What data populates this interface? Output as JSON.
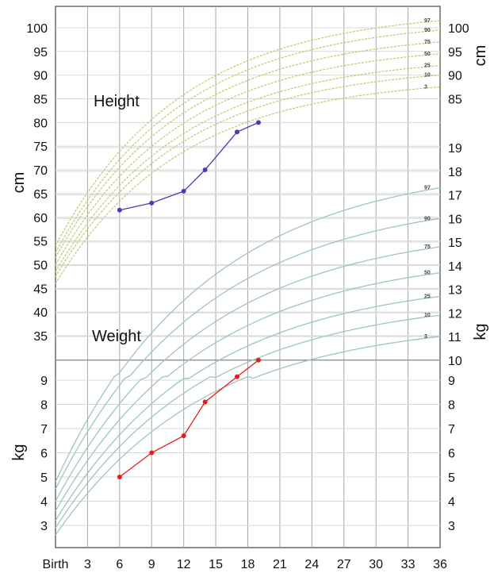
{
  "chart_data": {
    "type": "line",
    "x_axis": {
      "min": 0,
      "max": 36,
      "ticks": [
        0,
        3,
        6,
        9,
        12,
        15,
        18,
        21,
        24,
        27,
        30,
        33,
        36
      ],
      "tick_labels": [
        "Birth",
        "3",
        "6",
        "9",
        "12",
        "15",
        "18",
        "21",
        "24",
        "27",
        "30",
        "33",
        "36"
      ]
    },
    "height_axis_left": {
      "label": "cm",
      "ticks": [
        35,
        40,
        45,
        50,
        55,
        60,
        65,
        70,
        75,
        80,
        85,
        90,
        95,
        100
      ]
    },
    "height_axis_right": {
      "label": "cm",
      "ticks": [
        85,
        90,
        95,
        100
      ]
    },
    "weight_axis_left": {
      "label": "kg",
      "ticks": [
        3,
        4,
        5,
        6,
        7,
        8,
        9
      ]
    },
    "weight_axis_right": {
      "label": "kg",
      "ticks": [
        3,
        4,
        5,
        6,
        7,
        8,
        9,
        10,
        11,
        12,
        13,
        14,
        15,
        16,
        17,
        18,
        19
      ]
    },
    "height_section": {
      "title": "Height",
      "centile_labels": [
        "97",
        "90",
        "75",
        "50",
        "25",
        "10",
        "3"
      ],
      "centiles": [
        {
          "label": "97",
          "birth": 54.0,
          "end": 101.5
        },
        {
          "label": "90",
          "birth": 52.5,
          "end": 99.5
        },
        {
          "label": "75",
          "birth": 51.5,
          "end": 97.0
        },
        {
          "label": "50",
          "birth": 50.0,
          "end": 94.5
        },
        {
          "label": "25",
          "birth": 48.5,
          "end": 92.0
        },
        {
          "label": "10",
          "birth": 47.5,
          "end": 90.0
        },
        {
          "label": "3",
          "birth": 46.0,
          "end": 87.5
        }
      ],
      "series": [
        {
          "x": 6,
          "y": 61.5
        },
        {
          "x": 9,
          "y": 63.0
        },
        {
          "x": 12,
          "y": 65.5
        },
        {
          "x": 14,
          "y": 70.0
        },
        {
          "x": 17,
          "y": 78.0
        },
        {
          "x": 19,
          "y": 80.0
        }
      ]
    },
    "weight_section": {
      "title": "Weight",
      "centile_labels": [
        "97",
        "90",
        "75",
        "50",
        "25",
        "10",
        "3"
      ],
      "centiles": [
        {
          "label": "97",
          "birth": 4.8,
          "end": 17.3
        },
        {
          "label": "90",
          "birth": 4.5,
          "end": 16.0
        },
        {
          "label": "75",
          "birth": 4.0,
          "end": 14.8
        },
        {
          "label": "50",
          "birth": 3.6,
          "end": 13.7
        },
        {
          "label": "25",
          "birth": 3.2,
          "end": 12.7
        },
        {
          "label": "10",
          "birth": 2.9,
          "end": 11.9
        },
        {
          "label": "3",
          "birth": 2.6,
          "end": 11.0
        }
      ],
      "series": [
        {
          "x": 6,
          "y": 5.0
        },
        {
          "x": 9,
          "y": 6.0
        },
        {
          "x": 12,
          "y": 6.7
        },
        {
          "x": 14,
          "y": 8.1
        },
        {
          "x": 17,
          "y": 9.3
        },
        {
          "x": 19,
          "y": 10.0
        }
      ]
    },
    "grid": true,
    "colors": {
      "height_curves": "#b9d27a",
      "weight_curves": "#9ec7b8",
      "height_series": "#4a3fb0",
      "weight_series": "#e02020",
      "grid": "#a8a8a8"
    }
  }
}
